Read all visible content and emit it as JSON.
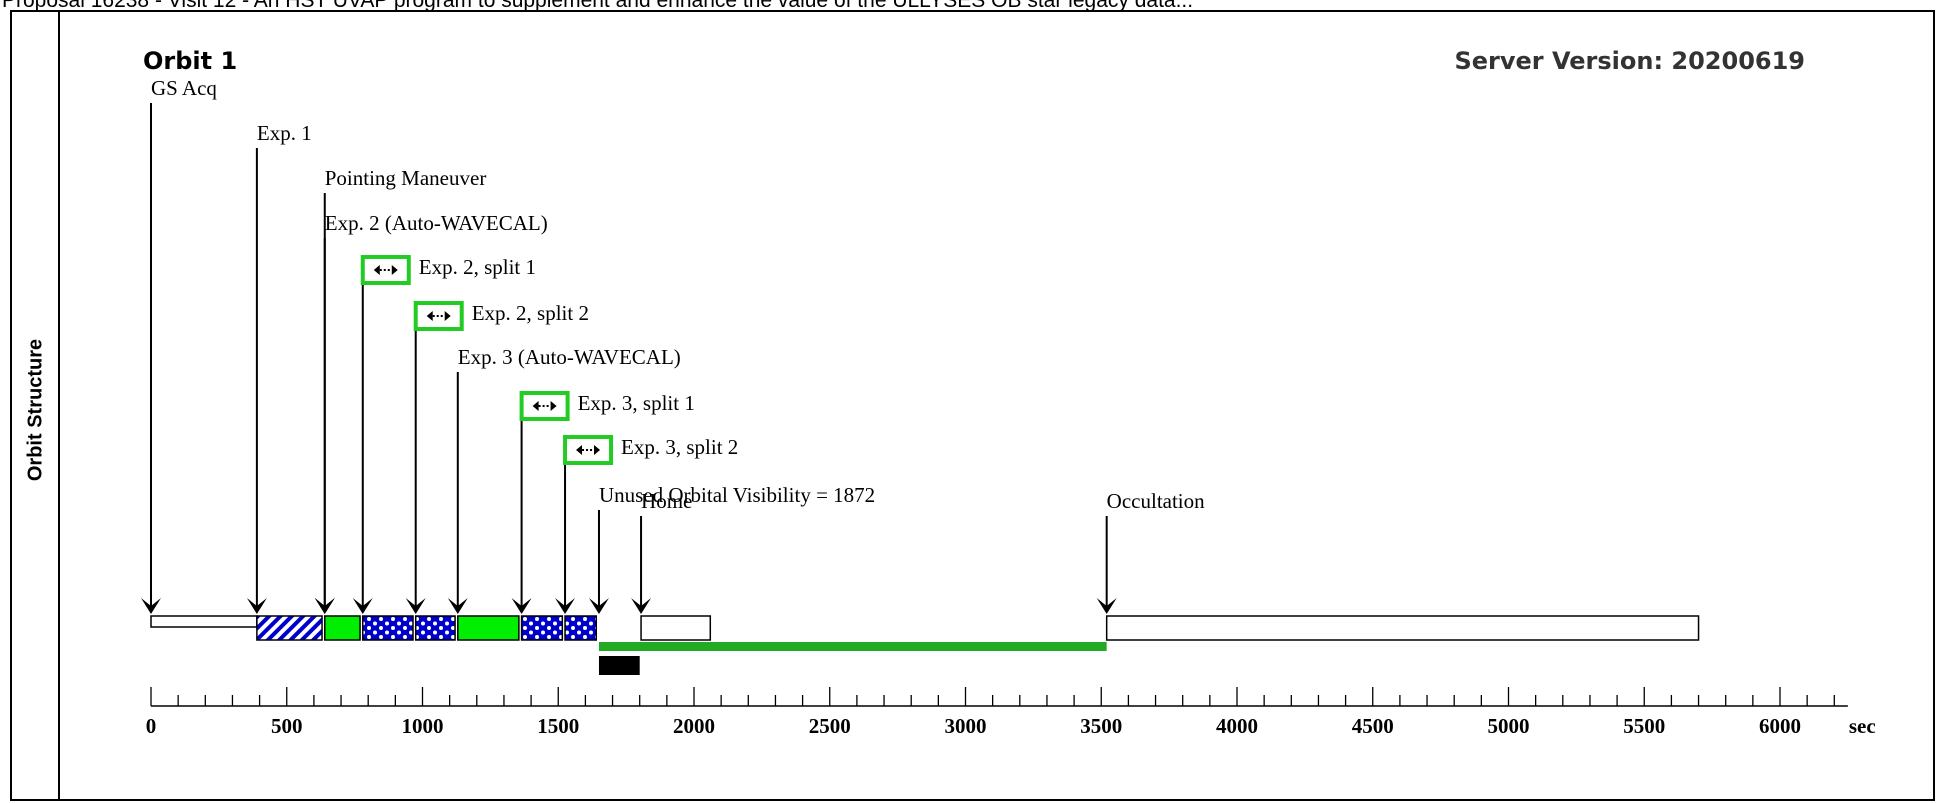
{
  "header": {
    "text": "Proposal 16238 - Visit 12 - An HST UVAP program to supplement and enhance the value of the ULLYSES OB star legacy data..."
  },
  "sidebar": {
    "label": "Orbit Structure"
  },
  "diagram": {
    "orbit_title": "Orbit 1",
    "server_version": "Server Version: 20200619",
    "events": [
      {
        "id": "gs-acq",
        "label": "GS Acq",
        "t": 0
      },
      {
        "id": "exp1",
        "label": "Exp. 1",
        "t": 390
      },
      {
        "id": "pointing",
        "label": "Pointing Maneuver",
        "t": 640
      },
      {
        "id": "exp2",
        "label": "Exp. 2 (Auto-WAVECAL)",
        "t": 640
      },
      {
        "id": "exp2-s1",
        "label": "Exp. 2, split 1",
        "t": 780,
        "split": true
      },
      {
        "id": "exp2-s2",
        "label": "Exp. 2, split 2",
        "t": 975,
        "split": true
      },
      {
        "id": "exp3",
        "label": "Exp. 3 (Auto-WAVECAL)",
        "t": 1130
      },
      {
        "id": "exp3-s1",
        "label": "Exp. 3, split 1",
        "t": 1365,
        "split": true
      },
      {
        "id": "exp3-s2",
        "label": "Exp. 3, split 2",
        "t": 1525,
        "split": true
      },
      {
        "id": "unused",
        "label": "Unused Orbital Visibility = 1872",
        "t": 1650
      },
      {
        "id": "home",
        "label": "Home",
        "t": 1805
      },
      {
        "id": "occultation",
        "label": "Occultation",
        "t": 3520
      }
    ],
    "segments": [
      {
        "name": "gs-acq-segment",
        "start": 0,
        "end": 390,
        "fill": "white",
        "thin": true
      },
      {
        "name": "exp1-segment",
        "start": 390,
        "end": 630,
        "fill": "hatch"
      },
      {
        "name": "exp2-wavecal-segment",
        "start": 640,
        "end": 770,
        "fill": "green"
      },
      {
        "name": "exp2-split1-segment",
        "start": 780,
        "end": 965,
        "fill": "dots"
      },
      {
        "name": "exp2-split2-segment",
        "start": 975,
        "end": 1120,
        "fill": "dots"
      },
      {
        "name": "exp3-wavecal-segment",
        "start": 1130,
        "end": 1355,
        "fill": "green"
      },
      {
        "name": "exp3-split1-segment",
        "start": 1365,
        "end": 1515,
        "fill": "dots"
      },
      {
        "name": "exp3-split2-segment",
        "start": 1525,
        "end": 1640,
        "fill": "dots"
      },
      {
        "name": "home-segment",
        "start": 1805,
        "end": 2060,
        "fill": "white"
      },
      {
        "name": "occultation-segment",
        "start": 3520,
        "end": 5700,
        "fill": "white"
      }
    ],
    "unused_visibility": {
      "start": 1650,
      "end": 3520
    },
    "black_bar": {
      "start": 1650,
      "end": 1800
    },
    "axis": {
      "min": 0,
      "max": 6250,
      "unit": "sec",
      "minor_step": 100,
      "ticks": [
        0,
        500,
        1000,
        1500,
        2000,
        2500,
        3000,
        3500,
        4000,
        4500,
        5000,
        5500,
        6000
      ],
      "tick_labels": [
        "0",
        "500",
        "1000",
        "1500",
        "2000",
        "2500",
        "3000",
        "3500",
        "4000",
        "4500",
        "5000",
        "5500",
        "6000"
      ]
    },
    "colors": {
      "green": "#00ee00",
      "blue": "#0000cc",
      "green_border": "#22cc22",
      "black": "#000000"
    }
  }
}
